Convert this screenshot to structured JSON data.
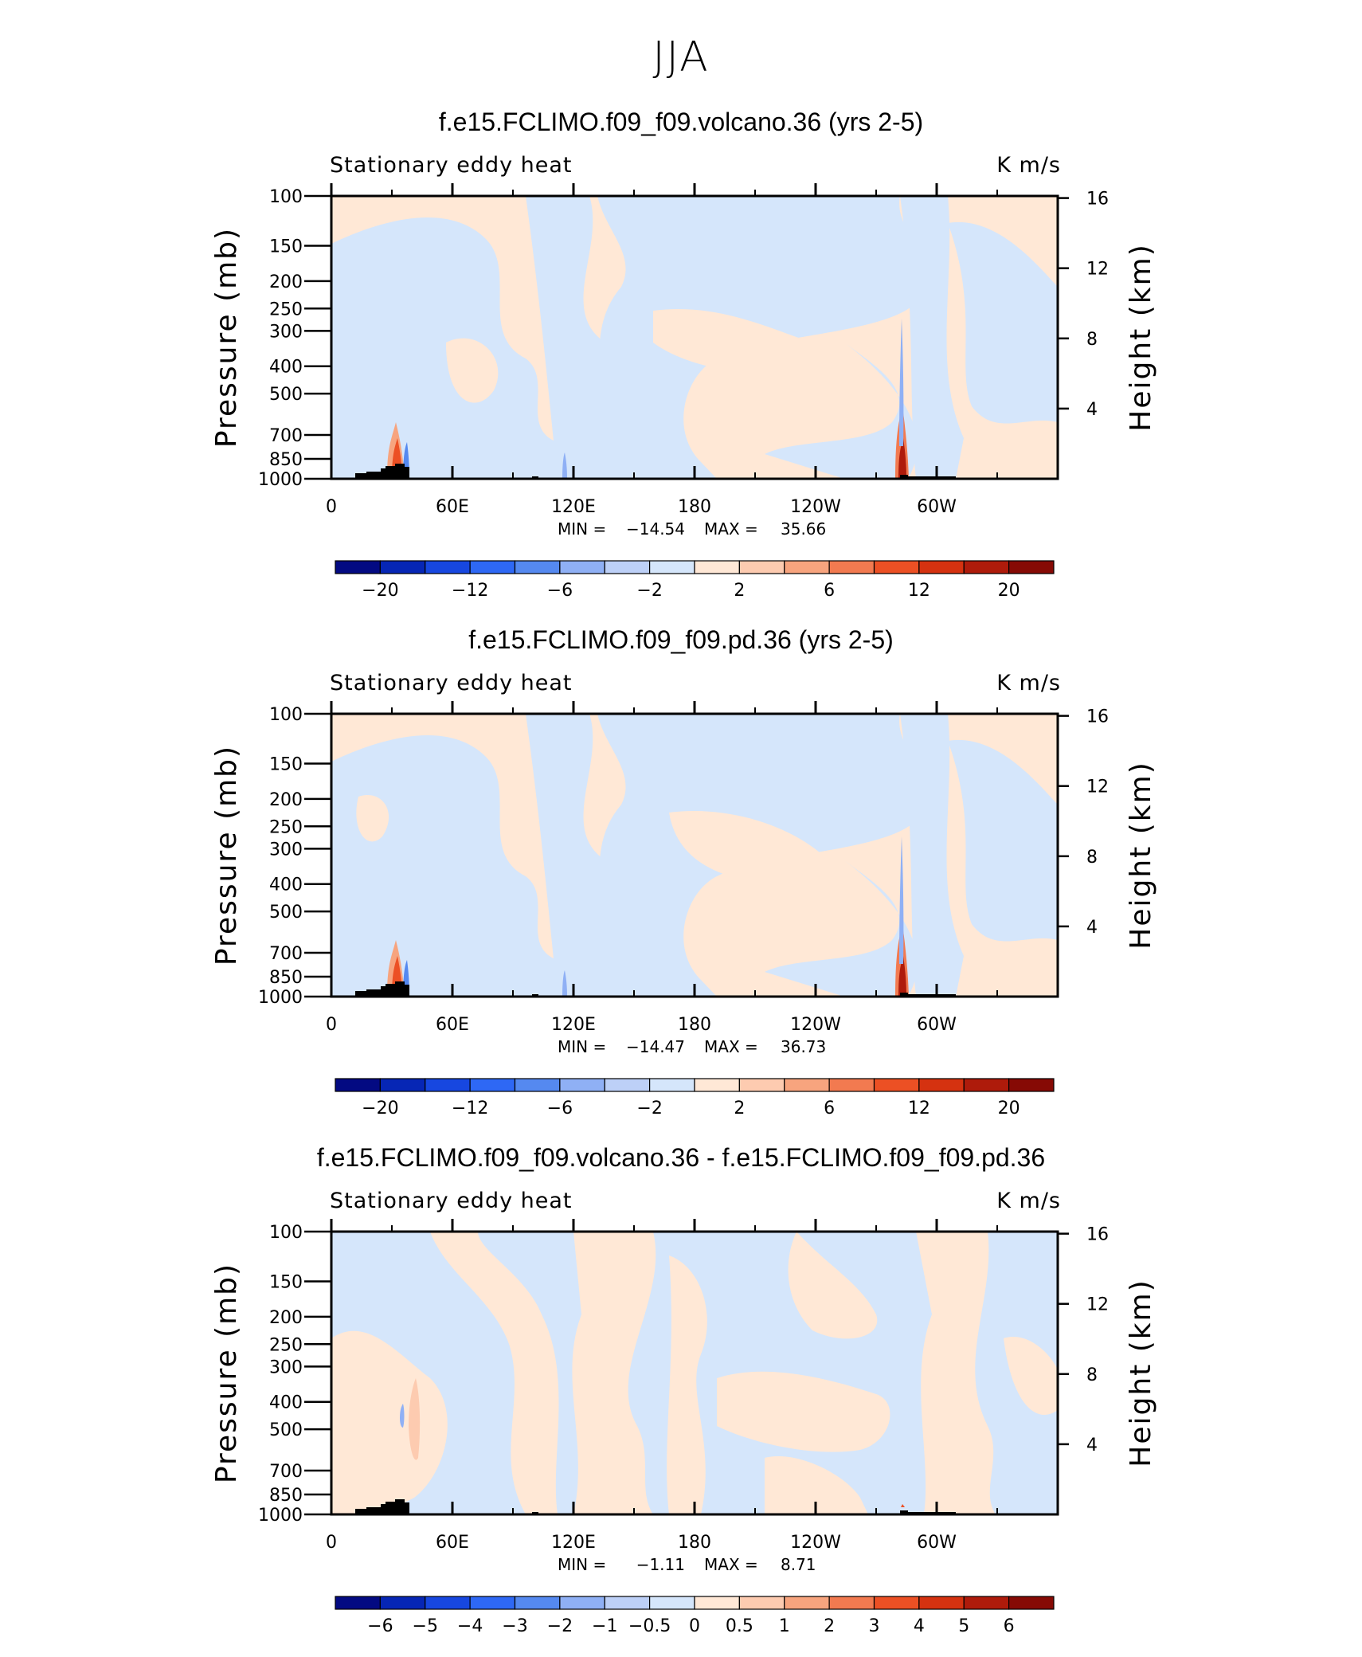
{
  "figure_title": "JJA",
  "chart_data": [
    {
      "type": "heatmap",
      "title": "f.e15.FCLIMO.f09_f09.volcano.36 (yrs 2-5)",
      "variable_label": "Stationary eddy heat",
      "units": "K m/s",
      "ylabel": "Pressure (mb)",
      "y2label": "Height (km)",
      "xticks": [
        "0",
        "60E",
        "120E",
        "180",
        "120W",
        "60W"
      ],
      "yticks": [
        100,
        150,
        200,
        250,
        300,
        400,
        500,
        700,
        850,
        1000
      ],
      "y2ticks": [
        16,
        12,
        8,
        4
      ],
      "stats": {
        "min_label": "MIN  =",
        "min": "−14.54",
        "max_label": "MAX  =",
        "max": "35.66"
      },
      "colorbar_labels": [
        "−20",
        "−12",
        "−6",
        "−2",
        "2",
        "6",
        "12",
        "20"
      ],
      "colorbar_colors": [
        "#030a82",
        "#0626b5",
        "#1747e0",
        "#2e68f5",
        "#5589f0",
        "#8fb0f5",
        "#bdd0f7",
        "#d5e6fb",
        "#ffe8d6",
        "#fdcbb0",
        "#f7a47e",
        "#f27a50",
        "#ec5024",
        "#d53210",
        "#ae1b0b",
        "#860a05"
      ]
    },
    {
      "type": "heatmap",
      "title": "f.e15.FCLIMO.f09_f09.pd.36 (yrs 2-5)",
      "variable_label": "Stationary eddy heat",
      "units": "K m/s",
      "ylabel": "Pressure (mb)",
      "y2label": "Height (km)",
      "xticks": [
        "0",
        "60E",
        "120E",
        "180",
        "120W",
        "60W"
      ],
      "yticks": [
        100,
        150,
        200,
        250,
        300,
        400,
        500,
        700,
        850,
        1000
      ],
      "y2ticks": [
        16,
        12,
        8,
        4
      ],
      "stats": {
        "min_label": "MIN  =",
        "min": "−14.47",
        "max_label": "MAX  =",
        "max": "36.73"
      },
      "colorbar_labels": [
        "−20",
        "−12",
        "−6",
        "−2",
        "2",
        "6",
        "12",
        "20"
      ],
      "colorbar_colors": [
        "#030a82",
        "#0626b5",
        "#1747e0",
        "#2e68f5",
        "#5589f0",
        "#8fb0f5",
        "#bdd0f7",
        "#d5e6fb",
        "#ffe8d6",
        "#fdcbb0",
        "#f7a47e",
        "#f27a50",
        "#ec5024",
        "#d53210",
        "#ae1b0b",
        "#860a05"
      ]
    },
    {
      "type": "heatmap",
      "title": "f.e15.FCLIMO.f09_f09.volcano.36 - f.e15.FCLIMO.f09_f09.pd.36",
      "variable_label": "Stationary eddy heat",
      "units": "K m/s",
      "ylabel": "Pressure (mb)",
      "y2label": "Height (km)",
      "xticks": [
        "0",
        "60E",
        "120E",
        "180",
        "120W",
        "60W"
      ],
      "yticks": [
        100,
        150,
        200,
        250,
        300,
        400,
        500,
        700,
        850,
        1000
      ],
      "y2ticks": [
        16,
        12,
        8,
        4
      ],
      "stats": {
        "min_label": "MIN  =",
        "min": "−1.11",
        "max_label": "MAX  =",
        "max": "8.71"
      },
      "colorbar_labels": [
        "−6",
        "−5",
        "−4",
        "−3",
        "−2",
        "−1",
        "−0.5",
        "0",
        "0.5",
        "1",
        "2",
        "3",
        "4",
        "5",
        "6"
      ],
      "colorbar_colors": [
        "#030a82",
        "#0626b5",
        "#1747e0",
        "#2e68f5",
        "#5589f0",
        "#8fb0f5",
        "#bdd0f7",
        "#d5e6fb",
        "#ffe8d6",
        "#fdcbb0",
        "#f7a47e",
        "#f27a50",
        "#ec5024",
        "#d53210",
        "#ae1b0b",
        "#860a05"
      ]
    }
  ]
}
